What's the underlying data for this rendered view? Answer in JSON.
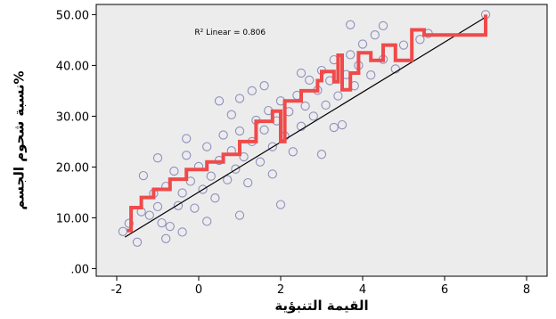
{
  "chart_data": {
    "type": "scatter",
    "xlabel": "القيمة التنبؤية",
    "ylabel": "نسبة شحوم الجسم%",
    "annotation": "R² Linear = 0.806",
    "xlim": [
      -2.5,
      8.5
    ],
    "ylim": [
      -1.5,
      52
    ],
    "x_ticks": [
      -2,
      0,
      2,
      4,
      6,
      8
    ],
    "x_tick_labels": [
      "-2",
      "0",
      "2",
      "4",
      "6",
      "8"
    ],
    "y_ticks": [
      0,
      10,
      20,
      30,
      40,
      50
    ],
    "y_tick_labels": [
      ".00",
      "10.00",
      "20.00",
      "30.00",
      "40.00",
      "50.00"
    ],
    "grid": false,
    "colors": {
      "plot_bg": "#ececec",
      "points": "#8f8fbf",
      "fit_lines": "#000000",
      "step_line": "#f04a4a"
    },
    "scatter_points": [
      [
        -1.85,
        7.3
      ],
      [
        -1.7,
        8.9
      ],
      [
        -1.5,
        5.2
      ],
      [
        -1.4,
        11.2
      ],
      [
        -1.35,
        18.3
      ],
      [
        -1.2,
        10.5
      ],
      [
        -1.1,
        14.8
      ],
      [
        -1.0,
        12.2
      ],
      [
        -0.9,
        9.0
      ],
      [
        -0.8,
        16.2
      ],
      [
        -0.7,
        8.3
      ],
      [
        -0.6,
        19.2
      ],
      [
        -0.5,
        12.4
      ],
      [
        -0.4,
        14.9
      ],
      [
        -0.3,
        22.3
      ],
      [
        -0.2,
        17.2
      ],
      [
        -0.1,
        11.9
      ],
      [
        0.0,
        20.1
      ],
      [
        0.1,
        15.6
      ],
      [
        0.2,
        24.0
      ],
      [
        0.3,
        18.2
      ],
      [
        0.4,
        13.9
      ],
      [
        0.5,
        21.3
      ],
      [
        0.6,
        26.3
      ],
      [
        0.7,
        17.5
      ],
      [
        0.8,
        23.2
      ],
      [
        0.9,
        19.6
      ],
      [
        1.0,
        27.1
      ],
      [
        1.1,
        22.0
      ],
      [
        1.2,
        16.9
      ],
      [
        1.3,
        25.0
      ],
      [
        1.4,
        29.2
      ],
      [
        1.5,
        21.0
      ],
      [
        1.6,
        27.3
      ],
      [
        1.7,
        31.1
      ],
      [
        1.8,
        24.0
      ],
      [
        1.9,
        29.1
      ],
      [
        2.0,
        33.0
      ],
      [
        2.1,
        26.1
      ],
      [
        2.2,
        30.9
      ],
      [
        2.3,
        23.0
      ],
      [
        2.4,
        34.1
      ],
      [
        2.5,
        28.0
      ],
      [
        2.6,
        32.0
      ],
      [
        2.7,
        37.1
      ],
      [
        2.8,
        30.0
      ],
      [
        2.9,
        35.1
      ],
      [
        3.0,
        39.0
      ],
      [
        3.1,
        32.2
      ],
      [
        3.2,
        37.0
      ],
      [
        3.3,
        41.1
      ],
      [
        3.4,
        34.0
      ],
      [
        3.5,
        28.3
      ],
      [
        3.6,
        38.2
      ],
      [
        3.7,
        42.1
      ],
      [
        3.8,
        36.0
      ],
      [
        3.9,
        40.0
      ],
      [
        4.0,
        44.2
      ],
      [
        4.2,
        38.1
      ],
      [
        4.3,
        46.0
      ],
      [
        4.5,
        41.2
      ],
      [
        4.8,
        39.3
      ],
      [
        5.0,
        44.0
      ],
      [
        5.4,
        45.1
      ],
      [
        5.6,
        46.3
      ],
      [
        7.0,
        50.0
      ],
      [
        0.5,
        33.0
      ],
      [
        1.0,
        33.5
      ],
      [
        3.7,
        48.0
      ],
      [
        4.5,
        47.8
      ],
      [
        -1.0,
        21.8
      ],
      [
        -0.3,
        25.6
      ],
      [
        0.8,
        30.3
      ],
      [
        1.6,
        36.0
      ],
      [
        2.0,
        12.6
      ],
      [
        1.0,
        10.5
      ],
      [
        -0.4,
        7.2
      ],
      [
        3.0,
        22.5
      ],
      [
        2.5,
        38.5
      ],
      [
        1.3,
        35.0
      ],
      [
        -0.8,
        5.9
      ],
      [
        0.2,
        9.3
      ],
      [
        1.8,
        18.6
      ],
      [
        3.3,
        27.8
      ]
    ],
    "linear_fit": [
      [
        -1.8,
        6.2
      ],
      [
        7.0,
        49.5
      ]
    ],
    "step_series": [
      [
        -1.75,
        7.5
      ],
      [
        -1.65,
        7.5
      ],
      [
        -1.65,
        12.0
      ],
      [
        -1.4,
        12.0
      ],
      [
        -1.4,
        14.0
      ],
      [
        -1.1,
        14.0
      ],
      [
        -1.1,
        15.6
      ],
      [
        -0.7,
        15.6
      ],
      [
        -0.7,
        17.6
      ],
      [
        -0.3,
        17.6
      ],
      [
        -0.3,
        19.5
      ],
      [
        0.2,
        19.5
      ],
      [
        0.2,
        21.0
      ],
      [
        0.6,
        21.0
      ],
      [
        0.6,
        22.5
      ],
      [
        1.0,
        22.5
      ],
      [
        1.0,
        25.0
      ],
      [
        1.4,
        25.0
      ],
      [
        1.4,
        29.0
      ],
      [
        1.8,
        29.0
      ],
      [
        1.8,
        31.0
      ],
      [
        2.0,
        31.0
      ],
      [
        2.0,
        25.0
      ],
      [
        2.1,
        25.0
      ],
      [
        2.1,
        33.0
      ],
      [
        2.5,
        33.0
      ],
      [
        2.5,
        35.0
      ],
      [
        2.9,
        35.0
      ],
      [
        2.9,
        37.0
      ],
      [
        3.0,
        37.0
      ],
      [
        3.0,
        38.8
      ],
      [
        3.3,
        38.8
      ],
      [
        3.3,
        36.8
      ],
      [
        3.4,
        36.8
      ],
      [
        3.4,
        42.0
      ],
      [
        3.5,
        42.0
      ],
      [
        3.5,
        35.2
      ],
      [
        3.7,
        35.2
      ],
      [
        3.7,
        38.5
      ],
      [
        3.9,
        38.5
      ],
      [
        3.9,
        42.5
      ],
      [
        4.2,
        42.5
      ],
      [
        4.2,
        41.0
      ],
      [
        4.5,
        41.0
      ],
      [
        4.5,
        44.0
      ],
      [
        4.8,
        44.0
      ],
      [
        4.8,
        41.0
      ],
      [
        5.2,
        41.0
      ],
      [
        5.2,
        47.0
      ],
      [
        5.5,
        47.0
      ],
      [
        5.5,
        46.0
      ],
      [
        7.0,
        46.0
      ],
      [
        7.0,
        50.0
      ]
    ]
  }
}
